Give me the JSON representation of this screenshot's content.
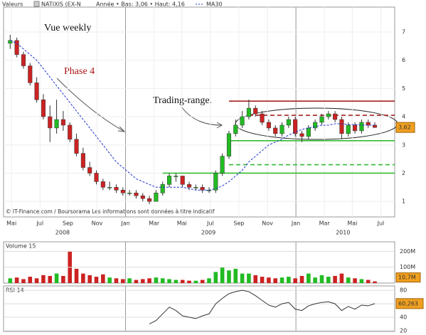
{
  "chart_data": {
    "type": "candlestick",
    "header": {
      "source": "Valeurs",
      "name": "NATIXIS (EX-N",
      "range": "Année • Bas: 3,06 • Haut: 4,16",
      "ma_legend": "MA30"
    },
    "annotations": [
      "Vue weekly",
      "Phase 4",
      "Trading-range."
    ],
    "footer": "© IT-Finance.com / Boursorama Les informations sont données à titre indicatif",
    "xlim": [
      -1,
      58
    ],
    "xticks": [
      {
        "value": 0.2,
        "label": "Mai"
      },
      {
        "value": 4.5,
        "label": "Jul"
      },
      {
        "value": 8.7,
        "label": "Sep"
      },
      {
        "value": 13.1,
        "label": "Nov"
      },
      {
        "value": 17.4,
        "label": "Jan"
      },
      {
        "value": 21.7,
        "label": "Mar"
      },
      {
        "value": 25.9,
        "label": "Mai"
      },
      {
        "value": 30.2,
        "label": "Jul"
      },
      {
        "value": 34.5,
        "label": "Sep"
      },
      {
        "value": 38.8,
        "label": "Nov"
      },
      {
        "value": 43.1,
        "label": "Jan"
      },
      {
        "value": 47.4,
        "label": "Mar"
      },
      {
        "value": 51.6,
        "label": "Mai"
      },
      {
        "value": 55.9,
        "label": "Jul"
      }
    ],
    "year_labels": [
      {
        "value": 7.9,
        "label": "2008"
      },
      {
        "value": 29.9,
        "label": "2009"
      },
      {
        "value": 50.2,
        "label": "2010"
      }
    ],
    "ylim": [
      0.45,
      7.88
    ],
    "yticks": [
      1,
      2,
      3,
      4,
      5,
      6,
      7
    ],
    "up_color": "#22bb22",
    "down_color": "#cc2222",
    "open": [
      6.6,
      6.7,
      6.2,
      5.8,
      5.2,
      4.6,
      4.0,
      3.6,
      3.9,
      3.7,
      3.2,
      2.7,
      2.2,
      2.0,
      1.7,
      1.5,
      1.5,
      1.4,
      1.3,
      1.3,
      1.2,
      1.1,
      1.0,
      1.3,
      1.6,
      1.9,
      1.9,
      1.6,
      1.5,
      1.5,
      1.4,
      1.4,
      2.0,
      2.6,
      3.4,
      3.7,
      4.0,
      4.3,
      4.1,
      3.8,
      3.6,
      3.4,
      3.7,
      3.9,
      3.4,
      3.3,
      3.6,
      3.8,
      4.0,
      4.1,
      3.9,
      3.4,
      3.7,
      3.5,
      3.8,
      3.7
    ],
    "high": [
      6.9,
      6.8,
      6.3,
      5.9,
      5.4,
      4.8,
      4.4,
      4.6,
      4.2,
      3.8,
      3.4,
      2.9,
      2.4,
      2.1,
      1.8,
      1.7,
      1.6,
      1.5,
      1.4,
      1.4,
      1.3,
      1.2,
      1.4,
      1.7,
      2.0,
      2.0,
      1.9,
      1.7,
      1.6,
      1.6,
      1.5,
      2.1,
      2.7,
      3.5,
      3.9,
      4.2,
      4.6,
      4.4,
      4.2,
      3.9,
      3.7,
      3.8,
      4.0,
      4.0,
      3.5,
      3.7,
      3.9,
      4.1,
      4.2,
      4.2,
      4.0,
      3.8,
      3.8,
      3.9,
      3.9,
      3.8
    ],
    "low": [
      6.4,
      6.1,
      5.7,
      5.1,
      4.5,
      3.9,
      3.1,
      3.4,
      3.5,
      3.1,
      2.6,
      2.1,
      1.9,
      1.6,
      1.4,
      1.4,
      1.3,
      1.2,
      1.2,
      1.1,
      1.0,
      0.9,
      1.0,
      1.2,
      1.5,
      1.7,
      1.5,
      1.4,
      1.4,
      1.3,
      1.3,
      1.3,
      1.9,
      2.5,
      3.3,
      3.6,
      3.9,
      4.0,
      3.7,
      3.5,
      3.3,
      3.3,
      3.6,
      3.3,
      3.1,
      3.2,
      3.5,
      3.7,
      3.9,
      3.8,
      3.2,
      3.3,
      3.4,
      3.4,
      3.6,
      3.6
    ],
    "close": [
      6.7,
      6.2,
      5.8,
      5.2,
      4.6,
      4.0,
      3.6,
      3.9,
      3.7,
      3.2,
      2.7,
      2.2,
      2.0,
      1.7,
      1.5,
      1.5,
      1.4,
      1.3,
      1.3,
      1.2,
      1.1,
      1.0,
      1.3,
      1.6,
      1.9,
      1.9,
      1.6,
      1.5,
      1.5,
      1.4,
      1.4,
      2.0,
      2.6,
      3.4,
      3.7,
      4.0,
      4.3,
      4.1,
      3.8,
      3.6,
      3.4,
      3.7,
      3.9,
      3.4,
      3.3,
      3.6,
      3.8,
      4.0,
      4.1,
      3.9,
      3.4,
      3.7,
      3.5,
      3.8,
      3.7,
      3.62
    ],
    "ma30": {
      "color": "#2233cc",
      "values": [
        6.7,
        6.6,
        6.4,
        6.2,
        6.0,
        5.7,
        5.4,
        5.1,
        4.8,
        4.5,
        4.2,
        3.9,
        3.6,
        3.3,
        3.0,
        2.7,
        2.4,
        2.2,
        2.0,
        1.8,
        1.7,
        1.6,
        1.5,
        1.5,
        1.5,
        1.5,
        1.5,
        1.45,
        1.4,
        1.4,
        1.4,
        1.45,
        1.55,
        1.7,
        1.9,
        2.1,
        2.4,
        2.6,
        2.8,
        3.0,
        3.1,
        3.2,
        3.35,
        3.45,
        3.55,
        3.6,
        3.65,
        3.7,
        3.7,
        3.75,
        3.75,
        3.72,
        3.72,
        3.7,
        3.7,
        3.7
      ]
    },
    "last_price": {
      "value": 3.62,
      "label": "3,62"
    },
    "levels": [
      {
        "value": 4.55,
        "from": 33,
        "color": "#aa2222",
        "dashed": false
      },
      {
        "value": 4.05,
        "from": 36,
        "color": "#aa2222",
        "dashed": true
      },
      {
        "value": 3.15,
        "from": 33,
        "color": "#33bb33",
        "dashed": false
      },
      {
        "value": 2.3,
        "from": 33,
        "color": "#33bb33",
        "dashed": true
      },
      {
        "value": 2.0,
        "from": 23,
        "color": "#33bb33",
        "dashed": false
      }
    ],
    "volume": {
      "title": "Volume 15",
      "ylim": [
        0,
        260
      ],
      "yticks": [
        {
          "value": 100,
          "label": "100M"
        },
        {
          "value": 200,
          "label": "200M"
        }
      ],
      "values": [
        30,
        35,
        25,
        40,
        30,
        50,
        45,
        60,
        45,
        200,
        90,
        60,
        50,
        40,
        55,
        35,
        30,
        25,
        30,
        20,
        25,
        30,
        35,
        30,
        25,
        20,
        20,
        15,
        15,
        20,
        30,
        70,
        100,
        80,
        90,
        60,
        60,
        50,
        40,
        35,
        30,
        35,
        40,
        30,
        45,
        60,
        35,
        50,
        40,
        45,
        60,
        35,
        30,
        25,
        20,
        10.7
      ],
      "last": {
        "value": 10.7,
        "label": "10,7M"
      }
    },
    "rsi": {
      "title": "RSI 14",
      "ylim": [
        18.9,
        86.5
      ],
      "yticks": [
        20,
        40,
        60,
        80
      ],
      "color": "#333333",
      "values": [
        null,
        null,
        null,
        null,
        null,
        null,
        null,
        null,
        null,
        null,
        null,
        null,
        null,
        null,
        null,
        null,
        null,
        null,
        null,
        null,
        null,
        30,
        35,
        45,
        55,
        50,
        42,
        40,
        38,
        42,
        45,
        60,
        68,
        75,
        78,
        80,
        78,
        72,
        65,
        58,
        55,
        60,
        62,
        52,
        50,
        57,
        60,
        62,
        63,
        60,
        50,
        56,
        52,
        58,
        57,
        60.263
      ],
      "last": {
        "value": 60.263,
        "label": "60,263"
      }
    }
  }
}
